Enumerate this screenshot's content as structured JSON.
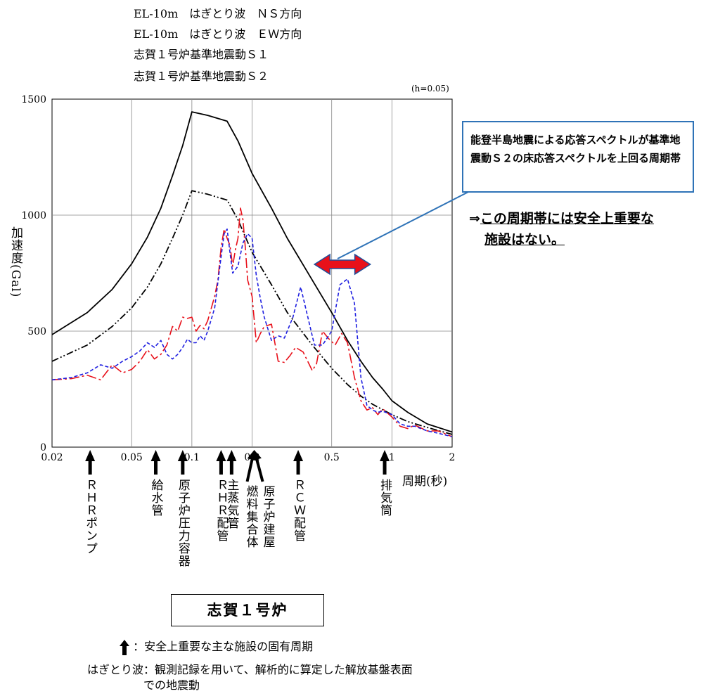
{
  "legend": [
    {
      "label": "EL-10m　はぎとり波　ＮＳ方向",
      "color": "#e8101a",
      "style": "dash-dot"
    },
    {
      "label": "EL-10m　はぎとり波　ＥＷ方向",
      "color": "#1f1fe0",
      "style": "dashed"
    },
    {
      "label": "志賀１号炉基準地震動Ｓ１",
      "color": "#000000",
      "style": "dash-dot-dot"
    },
    {
      "label": "志賀１号炉基準地震動Ｓ２",
      "color": "#000000",
      "style": "solid"
    }
  ],
  "damping_note": "(h=0.05)",
  "callout": {
    "text": "能登半島地震による応答スペクトルが基準地震動Ｓ２の床応答スペクトルを上回る周期帯",
    "arrow_range_sec": [
      0.41,
      0.78
    ],
    "arrow_color": "#e8101a"
  },
  "conclusion": {
    "prefix": "⇒",
    "line1": "この周期帯には安全上重要な",
    "line2": "施設はない。"
  },
  "facilities": [
    {
      "label": "ＲＨＲポンプ",
      "period": 0.031
    },
    {
      "label": "給水管",
      "period": 0.066
    },
    {
      "label": "原子炉圧力容器",
      "period": 0.09
    },
    {
      "label": "ＲＨＲ配管",
      "period": 0.14
    },
    {
      "label": "主蒸気管",
      "period": 0.158
    },
    {
      "label": "燃料集合体",
      "period": 0.194
    },
    {
      "label": "原子炉建屋",
      "period": 0.215
    },
    {
      "label": "ＲＣＷ配管",
      "period": 0.34
    },
    {
      "label": "排気筒",
      "period": 0.92
    }
  ],
  "unit_label": "志賀１号炉",
  "footnote_arrow": "：安全上重要な主な施設の固有周期",
  "footnote_definition": {
    "term": "はぎとり波：",
    "line1": "観測記録を用いて、解析的に算定した解放基盤表面",
    "line2": "での地震動"
  },
  "chart_data": {
    "type": "line",
    "xlabel": "周期(秒)",
    "ylabel": "加速度(Gal)",
    "x_scale": "log",
    "xlim": [
      0.02,
      2
    ],
    "ylim": [
      0,
      1500
    ],
    "x_ticks": [
      {
        "value": 0.02,
        "label": "0.02"
      },
      {
        "value": 0.05,
        "label": "0.05"
      },
      {
        "value": 0.1,
        "label": "0.1"
      },
      {
        "value": 0.2,
        "label": "0.2"
      },
      {
        "value": 0.5,
        "label": "0.5"
      },
      {
        "value": 1,
        "label": "1"
      },
      {
        "value": 2,
        "label": "2"
      }
    ],
    "y_ticks": [
      0,
      500,
      1000,
      1500
    ],
    "grid": true,
    "series": [
      {
        "name": "志賀１号炉基準地震動Ｓ２",
        "color": "#000000",
        "dash": "",
        "points": [
          [
            0.02,
            485
          ],
          [
            0.03,
            580
          ],
          [
            0.04,
            680
          ],
          [
            0.05,
            790
          ],
          [
            0.06,
            905
          ],
          [
            0.07,
            1030
          ],
          [
            0.08,
            1170
          ],
          [
            0.09,
            1300
          ],
          [
            0.1,
            1445
          ],
          [
            0.12,
            1430
          ],
          [
            0.15,
            1405
          ],
          [
            0.17,
            1320
          ],
          [
            0.2,
            1180
          ],
          [
            0.25,
            1030
          ],
          [
            0.3,
            900
          ],
          [
            0.4,
            720
          ],
          [
            0.5,
            580
          ],
          [
            0.6,
            460
          ],
          [
            0.7,
            370
          ],
          [
            0.8,
            300
          ],
          [
            0.9,
            250
          ],
          [
            1.0,
            200
          ],
          [
            1.2,
            150
          ],
          [
            1.5,
            100
          ],
          [
            2.0,
            65
          ]
        ]
      },
      {
        "name": "志賀１号炉基準地震動Ｓ１",
        "color": "#000000",
        "dash": "10,3,2,3,2,3",
        "points": [
          [
            0.02,
            370
          ],
          [
            0.03,
            440
          ],
          [
            0.04,
            520
          ],
          [
            0.05,
            600
          ],
          [
            0.06,
            690
          ],
          [
            0.07,
            790
          ],
          [
            0.08,
            900
          ],
          [
            0.09,
            1000
          ],
          [
            0.1,
            1105
          ],
          [
            0.12,
            1090
          ],
          [
            0.15,
            1065
          ],
          [
            0.17,
            980
          ],
          [
            0.2,
            840
          ],
          [
            0.25,
            700
          ],
          [
            0.3,
            580
          ],
          [
            0.4,
            440
          ],
          [
            0.5,
            340
          ],
          [
            0.6,
            270
          ],
          [
            0.7,
            220
          ],
          [
            0.8,
            185
          ],
          [
            1.0,
            140
          ],
          [
            1.2,
            110
          ],
          [
            1.5,
            85
          ],
          [
            2.0,
            55
          ]
        ]
      },
      {
        "name": "EL-10m　はぎとり波　ＮＳ方向",
        "color": "#e8101a",
        "dash": "14,4,3,4",
        "points": [
          [
            0.02,
            290
          ],
          [
            0.025,
            295
          ],
          [
            0.03,
            310
          ],
          [
            0.035,
            290
          ],
          [
            0.04,
            355
          ],
          [
            0.045,
            320
          ],
          [
            0.05,
            335
          ],
          [
            0.055,
            370
          ],
          [
            0.06,
            420
          ],
          [
            0.065,
            380
          ],
          [
            0.07,
            400
          ],
          [
            0.075,
            440
          ],
          [
            0.08,
            520
          ],
          [
            0.085,
            500
          ],
          [
            0.09,
            560
          ],
          [
            0.095,
            555
          ],
          [
            0.1,
            560
          ],
          [
            0.105,
            500
          ],
          [
            0.11,
            525
          ],
          [
            0.115,
            510
          ],
          [
            0.12,
            545
          ],
          [
            0.13,
            650
          ],
          [
            0.135,
            720
          ],
          [
            0.14,
            860
          ],
          [
            0.145,
            940
          ],
          [
            0.15,
            900
          ],
          [
            0.155,
            870
          ],
          [
            0.16,
            780
          ],
          [
            0.165,
            850
          ],
          [
            0.17,
            900
          ],
          [
            0.175,
            1030
          ],
          [
            0.18,
            980
          ],
          [
            0.185,
            860
          ],
          [
            0.19,
            720
          ],
          [
            0.2,
            650
          ],
          [
            0.21,
            450
          ],
          [
            0.22,
            490
          ],
          [
            0.23,
            520
          ],
          [
            0.25,
            530
          ],
          [
            0.27,
            370
          ],
          [
            0.29,
            365
          ],
          [
            0.31,
            395
          ],
          [
            0.33,
            430
          ],
          [
            0.36,
            410
          ],
          [
            0.4,
            330
          ],
          [
            0.42,
            360
          ],
          [
            0.45,
            500
          ],
          [
            0.48,
            470
          ],
          [
            0.52,
            440
          ],
          [
            0.56,
            490
          ],
          [
            0.6,
            450
          ],
          [
            0.65,
            300
          ],
          [
            0.7,
            200
          ],
          [
            0.75,
            160
          ],
          [
            0.8,
            170
          ],
          [
            0.85,
            140
          ],
          [
            0.9,
            165
          ],
          [
            1.0,
            130
          ],
          [
            1.1,
            90
          ],
          [
            1.2,
            80
          ],
          [
            1.3,
            95
          ],
          [
            1.5,
            70
          ],
          [
            1.7,
            70
          ],
          [
            2.0,
            45
          ]
        ]
      },
      {
        "name": "EL-10m　はぎとり波　ＥＷ方向",
        "color": "#1f1fe0",
        "dash": "5,3",
        "points": [
          [
            0.02,
            290
          ],
          [
            0.025,
            300
          ],
          [
            0.03,
            320
          ],
          [
            0.035,
            355
          ],
          [
            0.04,
            340
          ],
          [
            0.045,
            370
          ],
          [
            0.05,
            390
          ],
          [
            0.055,
            415
          ],
          [
            0.06,
            450
          ],
          [
            0.065,
            430
          ],
          [
            0.07,
            460
          ],
          [
            0.075,
            400
          ],
          [
            0.08,
            380
          ],
          [
            0.085,
            400
          ],
          [
            0.09,
            430
          ],
          [
            0.095,
            465
          ],
          [
            0.1,
            450
          ],
          [
            0.105,
            450
          ],
          [
            0.11,
            480
          ],
          [
            0.115,
            460
          ],
          [
            0.12,
            500
          ],
          [
            0.13,
            600
          ],
          [
            0.14,
            820
          ],
          [
            0.145,
            920
          ],
          [
            0.15,
            940
          ],
          [
            0.155,
            840
          ],
          [
            0.16,
            750
          ],
          [
            0.17,
            780
          ],
          [
            0.18,
            880
          ],
          [
            0.19,
            920
          ],
          [
            0.2,
            900
          ],
          [
            0.21,
            740
          ],
          [
            0.22,
            640
          ],
          [
            0.23,
            560
          ],
          [
            0.25,
            460
          ],
          [
            0.27,
            480
          ],
          [
            0.29,
            470
          ],
          [
            0.32,
            560
          ],
          [
            0.35,
            690
          ],
          [
            0.38,
            560
          ],
          [
            0.41,
            440
          ],
          [
            0.45,
            440
          ],
          [
            0.5,
            500
          ],
          [
            0.55,
            700
          ],
          [
            0.6,
            725
          ],
          [
            0.65,
            620
          ],
          [
            0.7,
            300
          ],
          [
            0.75,
            180
          ],
          [
            0.8,
            160
          ],
          [
            0.85,
            150
          ],
          [
            0.9,
            155
          ],
          [
            1.0,
            140
          ],
          [
            1.1,
            100
          ],
          [
            1.2,
            90
          ],
          [
            1.3,
            90
          ],
          [
            1.5,
            70
          ],
          [
            1.7,
            60
          ],
          [
            2.0,
            45
          ]
        ]
      }
    ]
  }
}
